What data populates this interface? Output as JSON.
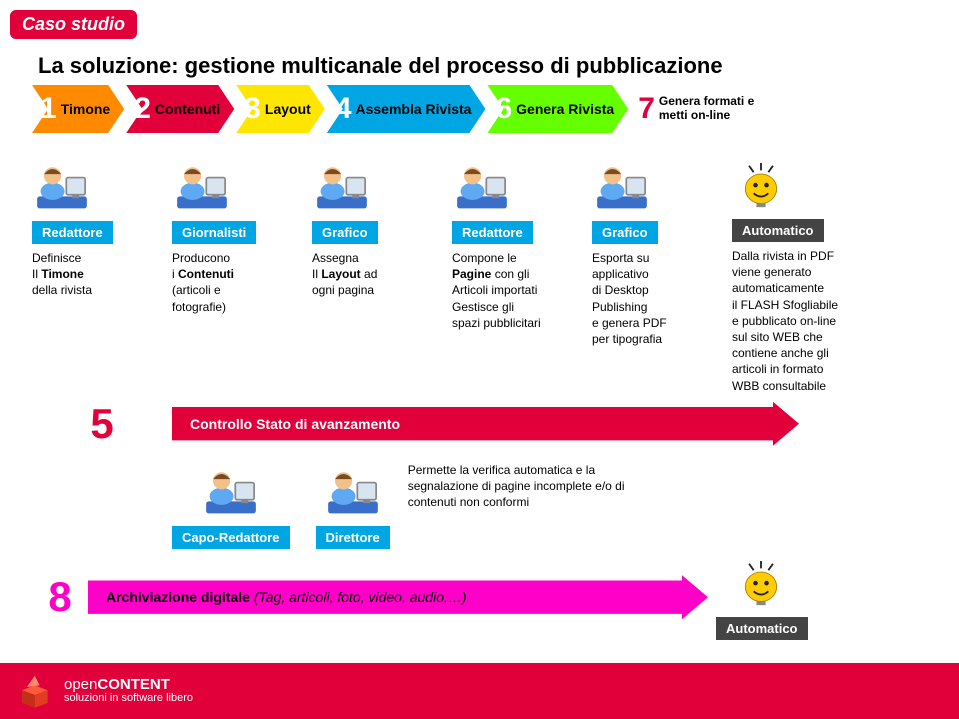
{
  "badge": "Caso studio",
  "title": "La soluzione: gestione multicanale del processo di pubblicazione",
  "steps": [
    {
      "n": "1",
      "label": "Timone",
      "color": "#ff8a00"
    },
    {
      "n": "2",
      "label": "Contenuti",
      "color": "#e2003b"
    },
    {
      "n": "3",
      "label": "Layout",
      "color": "#ffe600"
    },
    {
      "n": "4",
      "label": "Assembla Rivista",
      "color": "#00a5e3"
    },
    {
      "n": "6",
      "label": "Genera Rivista",
      "color": "#66ff00"
    },
    {
      "n": "7",
      "label": "Genera formati e metti on-line",
      "outlined": true,
      "outline_color": "#e2003b"
    }
  ],
  "roles": [
    {
      "name": "Redattore",
      "desc_html": "Definisce<br>Il <b>Timone</b><br>della rivista"
    },
    {
      "name": "Giornalisti",
      "desc_html": "Producono<br>i <b>Contenuti</b><br>(articoli e<br>fotografie)"
    },
    {
      "name": "Grafico",
      "desc_html": "Assegna<br>Il <b>Layout</b> ad<br>ogni pagina"
    },
    {
      "name": "Redattore",
      "desc_html": "Compone le<br><b>Pagine</b> con gli<br>Articoli importati<br>Gestisce gli<br>spazi pubblicitari"
    },
    {
      "name": "Grafico",
      "desc_html": "Esporta su<br>applicativo<br>di Desktop<br>Publishing<br>e genera PDF<br>per tipografia"
    },
    {
      "name": "Automatico",
      "auto": true,
      "desc_html": "Dalla rivista in PDF<br>viene generato<br>automaticamente<br>il FLASH Sfogliabile<br>e pubblicato on-line<br>sul sito WEB che<br>contiene anche gli<br>articoli in formato<br>WBB consultabile"
    }
  ],
  "five": {
    "n": "5",
    "label": "Controllo Stato di avanzamento",
    "color": "#e2003b"
  },
  "row2": {
    "roles": [
      "Capo-Redattore",
      "Direttore"
    ],
    "desc": "Permette la verifica automatica e la segnalazione di pagine incomplete e/o di contenuti non conformi"
  },
  "eight": {
    "n": "8",
    "label_bold": "Archiviazione digitale",
    "label_rest": " (Tag, articoli, foto, video, audio,…)",
    "color": "#ff00c8",
    "auto": "Automatico"
  },
  "footer": {
    "line1a": "open",
    "line1b": "CONTENT",
    "sub": "soluzioni in software libero"
  },
  "colors": {
    "brand": "#e2003b",
    "role": "#00a5e3",
    "auto": "#444444",
    "magenta": "#ff00c8"
  },
  "person_colors": {
    "skin": "#f2c089",
    "shirt": "#5fa8f2",
    "desk": "#3a6fc9",
    "screen_border": "#888",
    "screen": "#d8e4f0"
  },
  "smiley": {
    "face": "#ffcc00",
    "stroke": "#222"
  }
}
